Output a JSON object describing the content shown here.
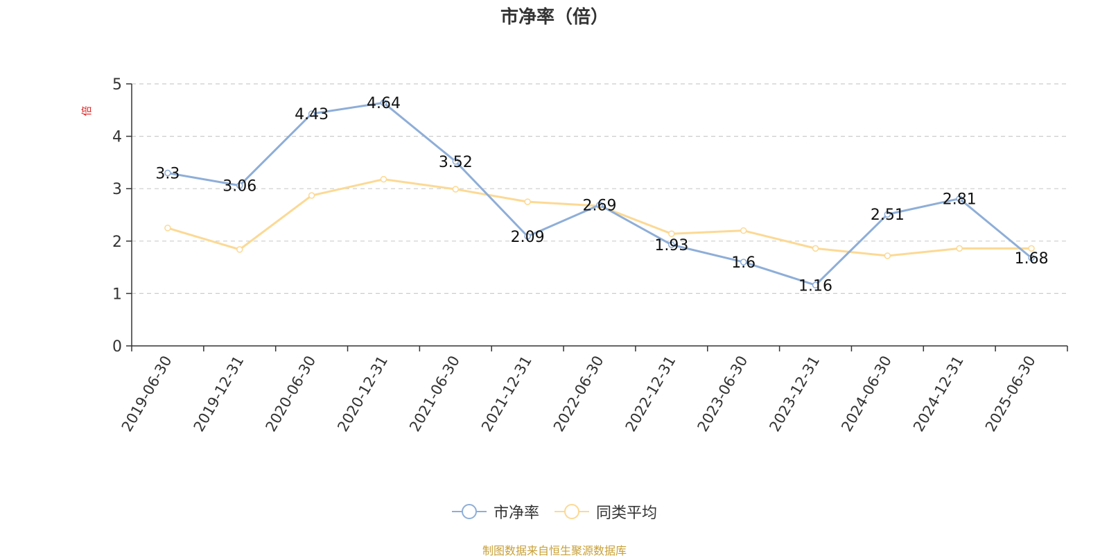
{
  "chart_data": {
    "type": "line",
    "title": "市净率（倍）",
    "ylabel": "倍",
    "xlabel": "",
    "categories": [
      "2019-06-30",
      "2019-12-31",
      "2020-06-30",
      "2020-12-31",
      "2021-06-30",
      "2021-12-31",
      "2022-06-30",
      "2022-12-31",
      "2023-06-30",
      "2023-12-31",
      "2024-06-30",
      "2024-12-31",
      "2025-06-30"
    ],
    "ylim": [
      0,
      5
    ],
    "yticks": [
      0,
      1,
      2,
      3,
      4,
      5
    ],
    "grid": "horizontal-dashed",
    "legend_position": "bottom-center",
    "series": [
      {
        "name": "市净率",
        "color": "#8eaed8",
        "values": [
          3.3,
          3.06,
          4.43,
          4.64,
          3.52,
          2.09,
          2.69,
          1.93,
          1.6,
          1.16,
          2.51,
          2.81,
          1.68
        ],
        "labels": [
          "3.3",
          "3.06",
          "4.43",
          "4.64",
          "3.52",
          "2.09",
          "2.69",
          "1.93",
          "1.6",
          "1.16",
          "2.51",
          "2.81",
          "1.68"
        ]
      },
      {
        "name": "同类平均",
        "color": "#fcd994",
        "values": [
          2.25,
          1.84,
          2.87,
          3.18,
          2.99,
          2.75,
          2.67,
          2.14,
          2.2,
          1.86,
          1.72,
          1.86,
          1.86
        ]
      }
    ]
  },
  "source_note": "制图数据来自恒生聚源数据库"
}
